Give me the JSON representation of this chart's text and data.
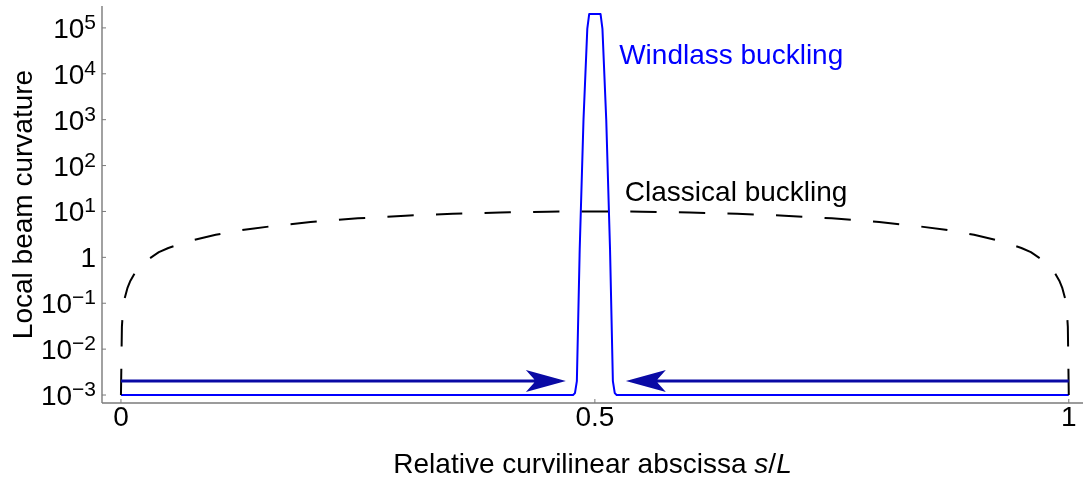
{
  "chart_data": {
    "type": "line",
    "xlabel": "Relative curvilinear abscissa s/L",
    "ylabel": "Local beam curvature",
    "log": "y",
    "xlim": [
      -0.02,
      1.015
    ],
    "xticks": [
      0,
      0.5,
      1
    ],
    "ylim": [
      0.00067,
      300000
    ],
    "yticks": [
      {
        "value": 0.001,
        "label": "10$^{−3}$"
      },
      {
        "value": 0.01,
        "label": "10$^{−2}$"
      },
      {
        "value": 0.1,
        "label": "10$^{−1}$"
      },
      1,
      {
        "value": 10,
        "label": "10$^{1}$"
      },
      {
        "value": 100,
        "label": "10$^{2}$"
      },
      {
        "value": 1000,
        "label": "10$^{3}$"
      },
      {
        "value": 10000,
        "label": "10$^{4}$"
      },
      {
        "value": 100000,
        "label": "10$^{5}$"
      }
    ],
    "line_style": "solid",
    "series": [
      {
        "name": "Windlass buckling",
        "color": "#0000ff",
        "x": [
          0,
          0.477,
          0.479,
          0.481,
          0.484,
          0.488,
          0.492,
          0.494,
          0.506,
          0.508,
          0.512,
          0.516,
          0.519,
          0.521,
          0.523,
          1
        ],
        "values": [
          0.001,
          0.001,
          0.0011,
          0.002,
          1.5,
          1000,
          95000,
          200000,
          200000,
          95000,
          1000,
          1.5,
          0.002,
          0.0011,
          0.001,
          0.001
        ]
      },
      {
        "name": "Classical buckling",
        "color": "#000000",
        "line_style": "dashed",
        "x": [
          0,
          0.001,
          0.002,
          0.004,
          0.007,
          0.01,
          0.015,
          0.02,
          0.03,
          0.04,
          0.05,
          0.07,
          0.1,
          0.13,
          0.16,
          0.2,
          0.25,
          0.3,
          0.35,
          0.4,
          0.45,
          0.5,
          0.55,
          0.6,
          0.65,
          0.7,
          0.75,
          0.8,
          0.84,
          0.87,
          0.9,
          0.93,
          0.95,
          0.96,
          0.97,
          0.98,
          0.985,
          0.99,
          0.993,
          0.996,
          0.998,
          0.999,
          1
        ],
        "values": [
          0.001,
          0.031,
          0.063,
          0.13,
          0.22,
          0.31,
          0.47,
          0.63,
          0.94,
          1.3,
          1.6,
          2.2,
          3.1,
          4.0,
          4.8,
          5.9,
          7.1,
          8.1,
          8.9,
          9.5,
          9.9,
          10,
          9.9,
          9.5,
          8.9,
          8.1,
          7.1,
          5.9,
          4.8,
          4.0,
          3.1,
          2.2,
          1.6,
          1.3,
          0.94,
          0.63,
          0.47,
          0.31,
          0.22,
          0.13,
          0.063,
          0.031,
          0.001
        ]
      }
    ]
  }
}
